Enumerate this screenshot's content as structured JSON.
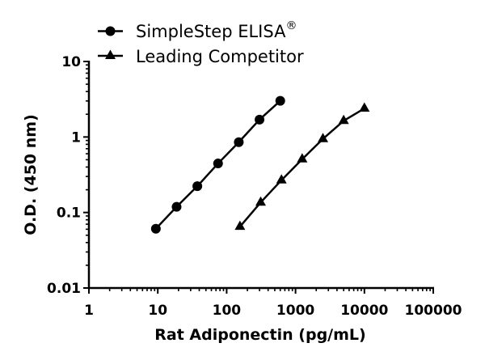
{
  "chart_data": {
    "type": "line",
    "title": "",
    "xlabel": "Rat Adiponectin (pg/mL)",
    "ylabel": "O.D. (450 nm)",
    "xscale": "log",
    "yscale": "log",
    "xlim": [
      1,
      100000
    ],
    "ylim": [
      0.01,
      10
    ],
    "x_ticks": [
      "1",
      "10",
      "100",
      "1000",
      "10000",
      "100000"
    ],
    "y_ticks": [
      "0.01",
      "0.1",
      "1",
      "10"
    ],
    "grid": false,
    "legend_position": "top-left",
    "series": [
      {
        "name": "SimpleStep ELISA®",
        "marker": "circle",
        "color": "#000000",
        "x": [
          9.38,
          18.75,
          37.5,
          75,
          150,
          300,
          600
        ],
        "y": [
          0.061,
          0.119,
          0.223,
          0.446,
          0.853,
          1.7,
          3.01
        ]
      },
      {
        "name": "Leading Competitor",
        "marker": "triangle",
        "color": "#000000",
        "x": [
          156,
          312,
          625,
          1250,
          2500,
          5000,
          10000
        ],
        "y": [
          0.065,
          0.136,
          0.268,
          0.508,
          0.943,
          1.64,
          2.39
        ]
      }
    ]
  },
  "legend": {
    "items": [
      {
        "label": "SimpleStep ELISA",
        "superscript": "®"
      },
      {
        "label": "Leading Competitor"
      }
    ]
  },
  "axes": {
    "x_title": "Rat Adiponectin (pg/mL)",
    "y_title": "O.D. (450 nm)",
    "x_tick_labels": [
      "1",
      "10",
      "100",
      "1000",
      "10000",
      "100000"
    ],
    "y_tick_labels": [
      "0.01",
      "0.1",
      "1",
      "10"
    ]
  }
}
